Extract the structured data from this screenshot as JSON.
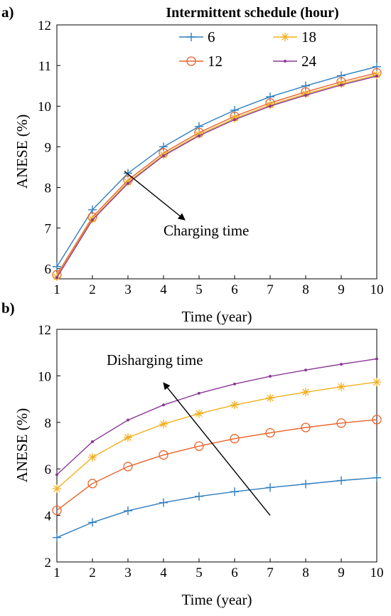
{
  "chart_data": [
    {
      "panel_label": "a)",
      "type": "line",
      "xlabel": "Time (year)",
      "ylabel": "ANESE (%)",
      "xlim": [
        1,
        10
      ],
      "ylim": [
        5.75,
        12
      ],
      "x_ticks": [
        1,
        2,
        3,
        4,
        5,
        6,
        7,
        8,
        9,
        10
      ],
      "y_ticks": [
        6,
        7,
        8,
        9,
        10,
        11,
        12
      ],
      "grid": false,
      "x": [
        1,
        2,
        3,
        4,
        5,
        6,
        7,
        8,
        9,
        10
      ],
      "legend": {
        "title": "Intermittent schedule (hour)",
        "placement": "top-right",
        "entries": [
          "6",
          "18",
          "12",
          "24"
        ]
      },
      "annotation": {
        "text": "Charging time",
        "arrow_from": [
          2.9,
          8.4
        ],
        "arrow_to": [
          4.6,
          7.2
        ]
      },
      "series": [
        {
          "name": "6",
          "color": "#2f7ec1",
          "marker": "plus",
          "values": [
            6.05,
            7.45,
            8.35,
            9.0,
            9.5,
            9.9,
            10.23,
            10.5,
            10.75,
            10.97
          ]
        },
        {
          "name": "12",
          "color": "#e8632a",
          "marker": "circle",
          "values": [
            5.85,
            7.27,
            8.18,
            8.85,
            9.35,
            9.75,
            10.08,
            10.35,
            10.6,
            10.82
          ]
        },
        {
          "name": "18",
          "color": "#f2b01e",
          "marker": "star",
          "values": [
            5.8,
            7.22,
            8.13,
            8.8,
            9.3,
            9.7,
            10.03,
            10.3,
            10.55,
            10.77
          ]
        },
        {
          "name": "24",
          "color": "#8b3a96",
          "marker": "dot",
          "values": [
            5.78,
            7.2,
            8.1,
            8.78,
            9.27,
            9.67,
            10.0,
            10.27,
            10.52,
            10.74
          ]
        }
      ]
    },
    {
      "panel_label": "b)",
      "type": "line",
      "xlabel": "Time (year)",
      "ylabel": "ANESE (%)",
      "xlim": [
        1,
        10
      ],
      "ylim": [
        2,
        12
      ],
      "x_ticks": [
        1,
        2,
        3,
        4,
        5,
        6,
        7,
        8,
        9,
        10
      ],
      "y_ticks": [
        2,
        4,
        6,
        8,
        10,
        12
      ],
      "grid": false,
      "x": [
        1,
        2,
        3,
        4,
        5,
        6,
        7,
        8,
        9,
        10
      ],
      "annotation": {
        "text": "Disharging time",
        "arrow_from": [
          7.0,
          4.0
        ],
        "arrow_to": [
          4.0,
          9.7
        ]
      },
      "series": [
        {
          "name": "6",
          "color": "#2f7ec1",
          "marker": "plus",
          "values": [
            3.05,
            3.7,
            4.2,
            4.55,
            4.82,
            5.02,
            5.2,
            5.35,
            5.5,
            5.62
          ]
        },
        {
          "name": "12",
          "color": "#e8632a",
          "marker": "circle",
          "values": [
            4.22,
            5.37,
            6.1,
            6.6,
            6.98,
            7.3,
            7.55,
            7.78,
            7.97,
            8.12
          ]
        },
        {
          "name": "18",
          "color": "#f2b01e",
          "marker": "star",
          "values": [
            5.15,
            6.5,
            7.35,
            7.93,
            8.38,
            8.75,
            9.05,
            9.3,
            9.53,
            9.73
          ]
        },
        {
          "name": "24",
          "color": "#8b3a96",
          "marker": "dot",
          "values": [
            5.75,
            7.17,
            8.1,
            8.75,
            9.25,
            9.65,
            9.98,
            10.25,
            10.5,
            10.73
          ]
        }
      ]
    }
  ]
}
